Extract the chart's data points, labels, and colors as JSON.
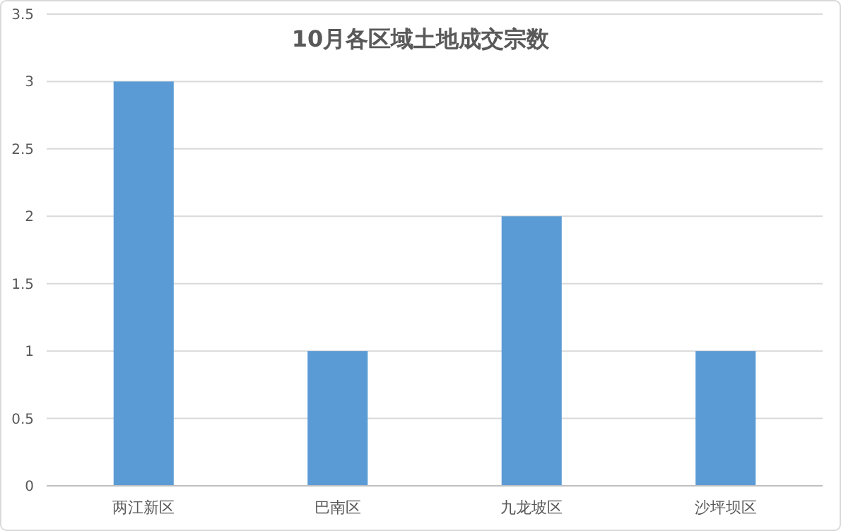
{
  "chart_data": {
    "type": "bar",
    "title": "10月各区域土地成交宗数",
    "categories": [
      "两江新区",
      "巴南区",
      "九龙坡区",
      "沙坪坝区"
    ],
    "values": [
      3,
      1,
      2,
      1
    ],
    "color": "#5b9bd5",
    "ylim": [
      0,
      3.5
    ],
    "yticks": [
      0,
      0.5,
      1,
      1.5,
      2,
      2.5,
      3,
      3.5
    ],
    "grid": "y"
  }
}
